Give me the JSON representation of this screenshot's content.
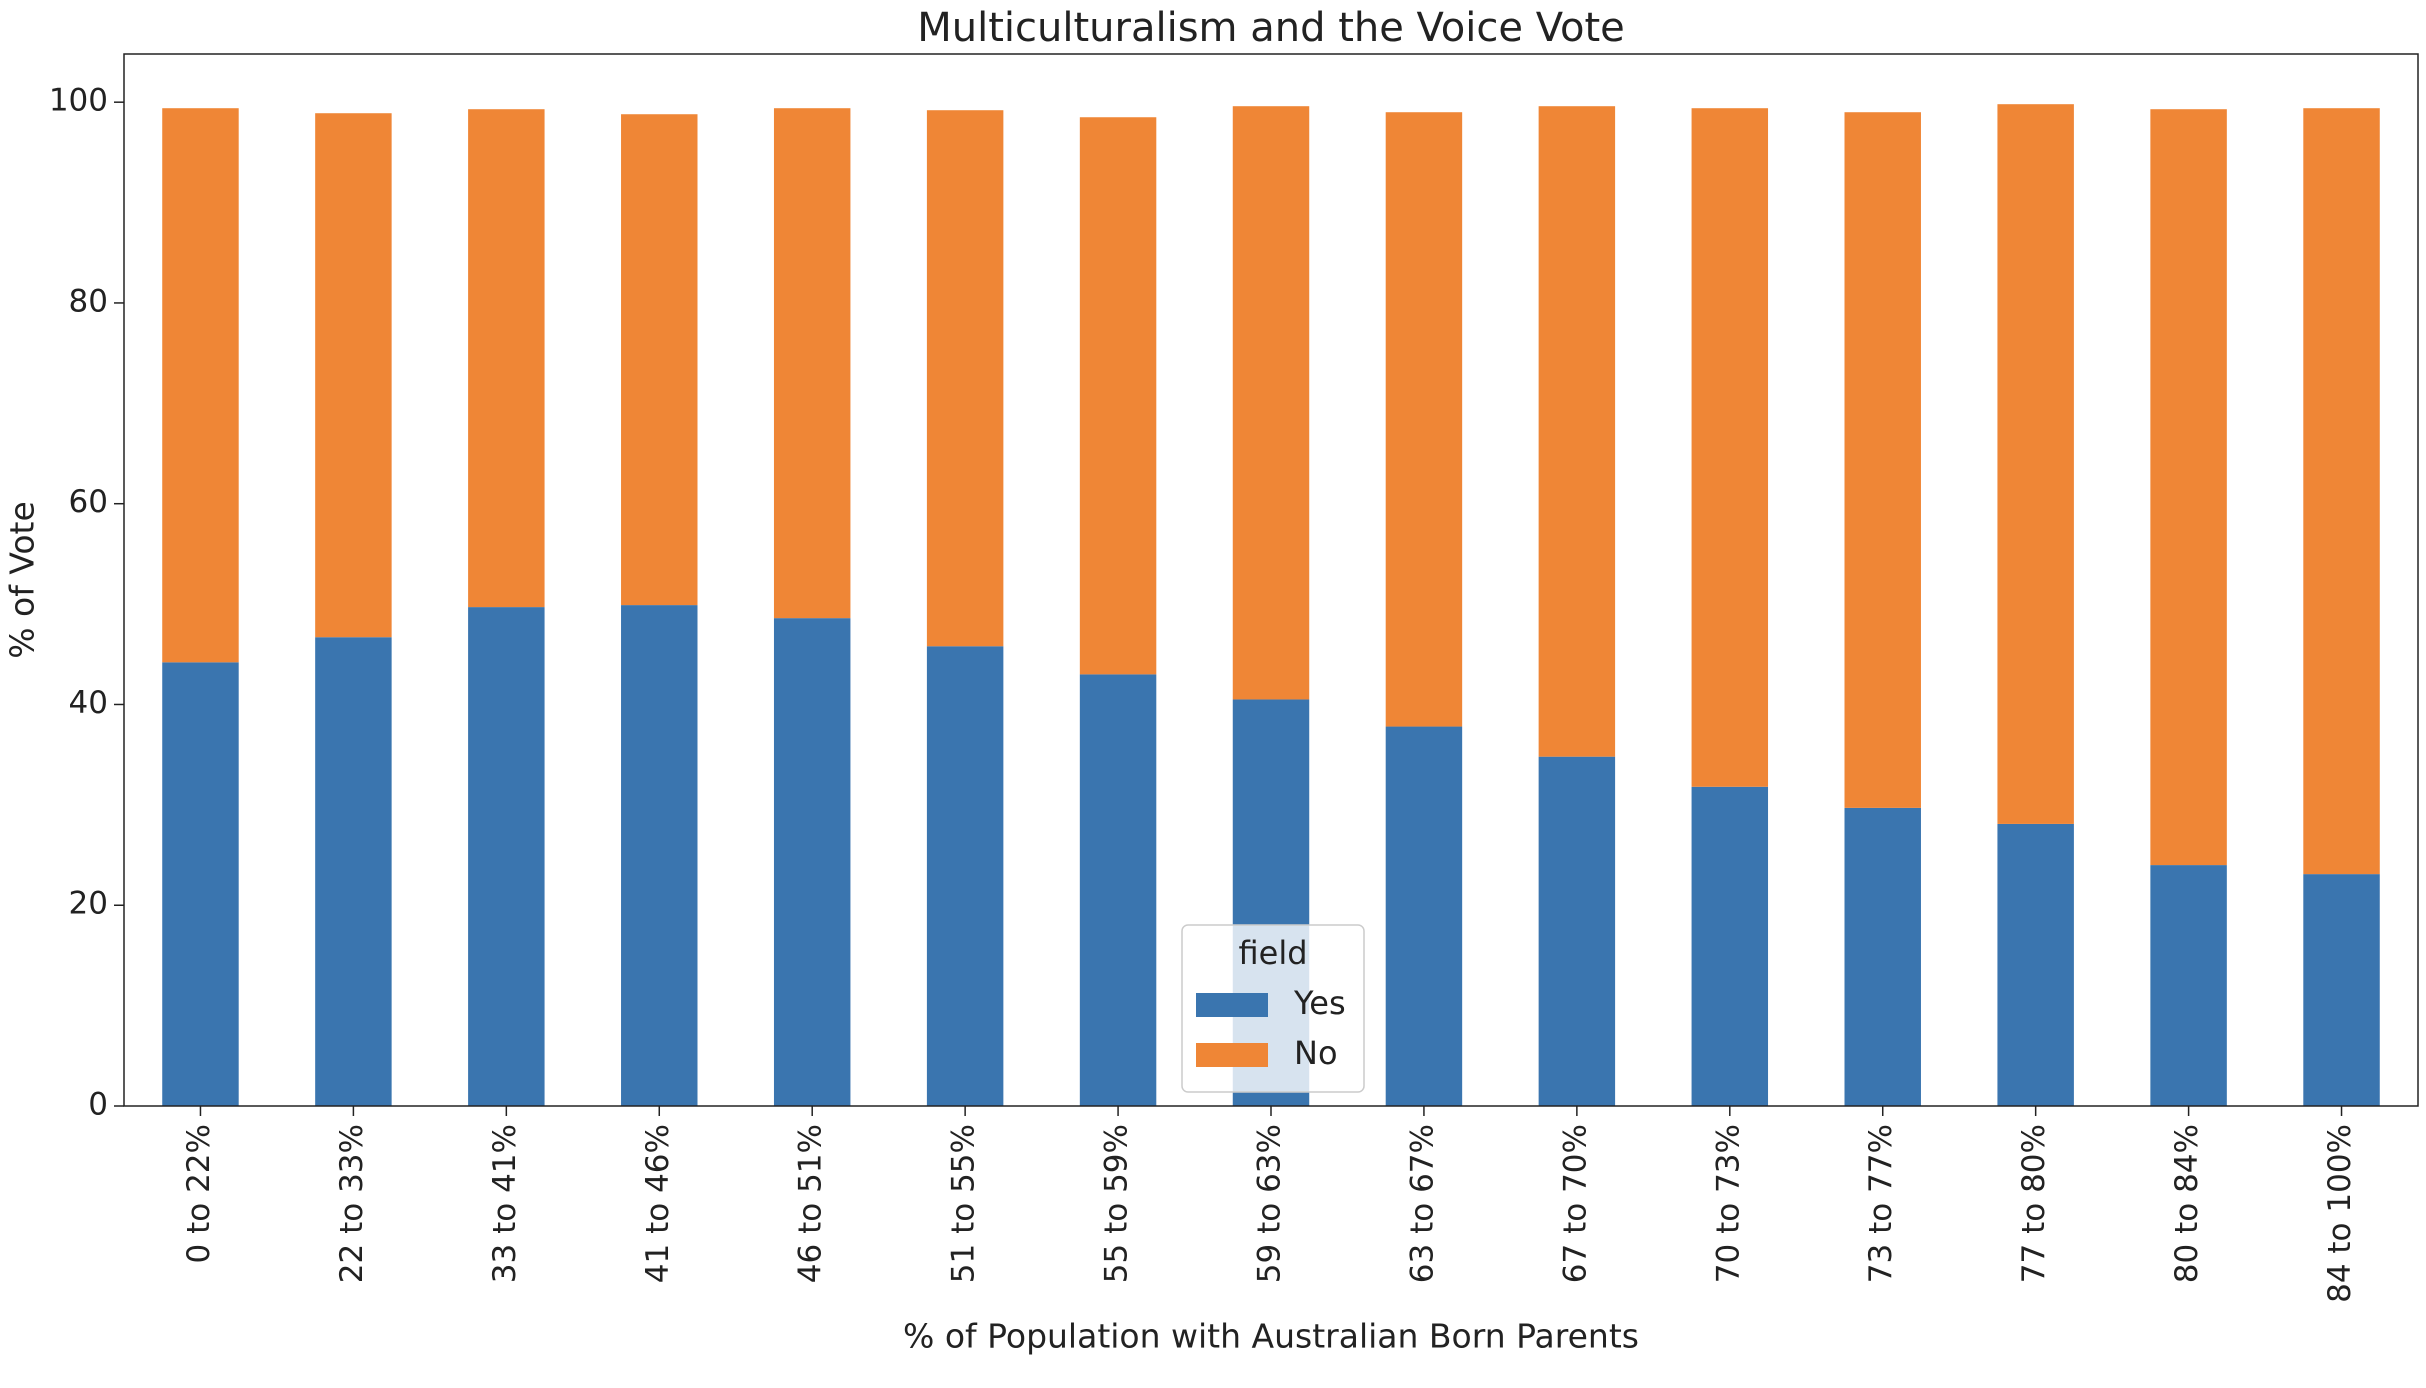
{
  "chart_data": {
    "type": "stacked-bar",
    "title": "Multiculturalism and the Voice Vote",
    "x_label": "% of Population with Australian Born Parents",
    "y_label": "% of Vote",
    "categories": [
      "0 to 22%",
      "22 to 33%",
      "33 to 41%",
      "41 to 46%",
      "46 to 51%",
      "51 to 55%",
      "55 to 59%",
      "59 to 63%",
      "63 to 67%",
      "67 to 70%",
      "70 to 73%",
      "73 to 77%",
      "77 to 80%",
      "80 to 84%",
      "84 to 100%"
    ],
    "series": [
      {
        "name": "Yes",
        "color": "#3a75af",
        "values": [
          44.2,
          46.7,
          49.7,
          49.9,
          48.6,
          45.8,
          43.0,
          40.5,
          37.8,
          34.8,
          31.8,
          29.7,
          28.1,
          24.0,
          23.1
        ]
      },
      {
        "name": "No",
        "color": "#ef8636",
        "values": [
          55.2,
          52.2,
          49.6,
          48.9,
          50.8,
          53.4,
          55.5,
          59.1,
          61.2,
          64.8,
          67.6,
          69.3,
          71.7,
          75.3,
          76.3
        ]
      }
    ],
    "legend_title": "field",
    "ylim": [
      0,
      104.8
    ],
    "yticks": [
      0,
      20,
      40,
      60,
      80,
      100
    ]
  }
}
